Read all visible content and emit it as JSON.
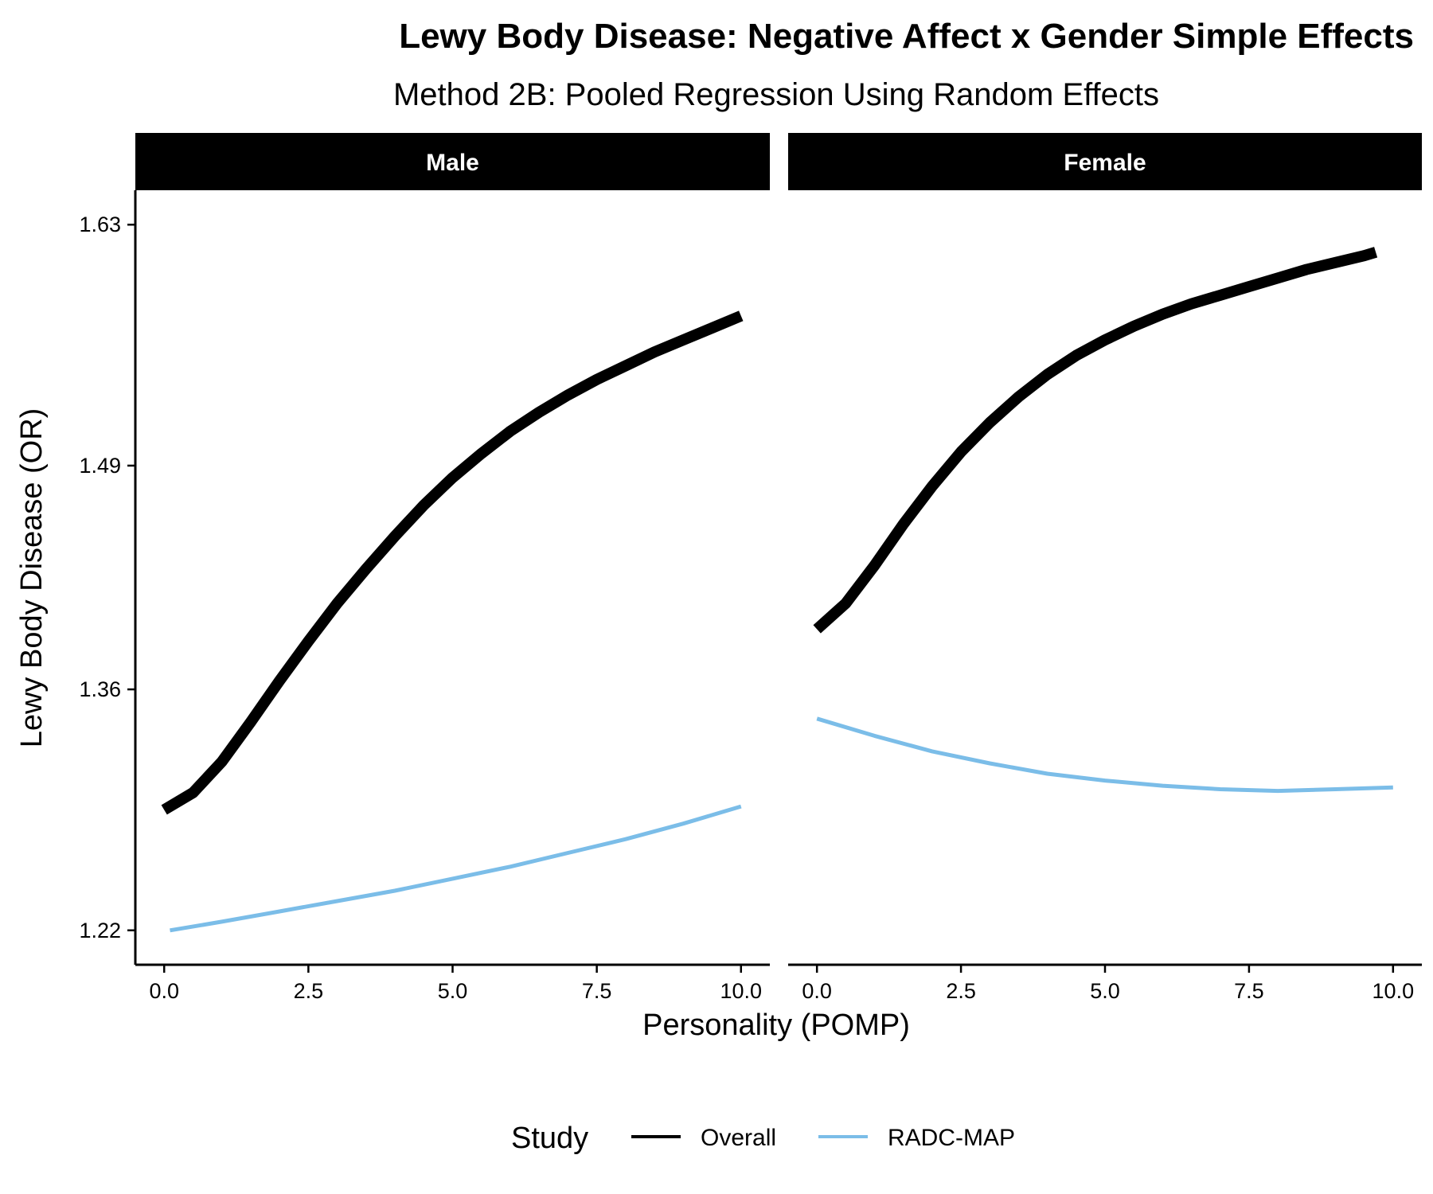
{
  "chart_data": {
    "type": "line",
    "title": "Lewy Body Disease: Negative Affect x Gender Simple Effects",
    "subtitle": "Method 2B: Pooled Regression Using Random Effects",
    "xlabel": "Personality (POMP)",
    "ylabel": "Lewy Body Disease (OR)",
    "xlim": [
      -0.5,
      10.5
    ],
    "ylim": [
      1.2,
      1.65
    ],
    "xticks": [
      0,
      2.5,
      5,
      7.5,
      10
    ],
    "xtick_labels": [
      "0.0",
      "2.5",
      "5.0",
      "7.5",
      "10.0"
    ],
    "yticks": [
      1.22,
      1.36,
      1.49,
      1.63
    ],
    "ytick_labels": [
      "1.22",
      "1.36",
      "1.49",
      "1.63"
    ],
    "grid": false,
    "legend": {
      "title": "Study",
      "position": "bottom",
      "entries": [
        "Overall",
        "RADC-MAP"
      ]
    },
    "colors": {
      "Overall": "#000000",
      "RADC-MAP": "#7bbde8"
    },
    "panels": [
      {
        "name": "Male",
        "series": [
          {
            "name": "Overall",
            "x": [
              0,
              0.5,
              1,
              1.5,
              2,
              2.5,
              3,
              3.5,
              4,
              4.5,
              5,
              5.5,
              6,
              6.5,
              7,
              7.5,
              8,
              8.5,
              9,
              9.5,
              10
            ],
            "y": [
              1.29,
              1.3,
              1.318,
              1.341,
              1.365,
              1.388,
              1.41,
              1.43,
              1.449,
              1.467,
              1.483,
              1.497,
              1.51,
              1.521,
              1.531,
              1.54,
              1.548,
              1.556,
              1.563,
              1.57,
              1.577
            ]
          },
          {
            "name": "RADC-MAP",
            "x": [
              0.1,
              1,
              2,
              3,
              4,
              5,
              6,
              7,
              8,
              9,
              10
            ],
            "y": [
              1.22,
              1.225,
              1.231,
              1.237,
              1.243,
              1.25,
              1.257,
              1.265,
              1.273,
              1.282,
              1.292
            ]
          }
        ]
      },
      {
        "name": "Female",
        "series": [
          {
            "name": "Overall",
            "x": [
              0,
              0.5,
              1,
              1.5,
              2,
              2.5,
              3,
              3.5,
              4,
              4.5,
              5,
              5.5,
              6,
              6.5,
              7,
              7.5,
              8,
              8.5,
              9,
              9.5,
              9.7
            ],
            "y": [
              1.395,
              1.41,
              1.432,
              1.456,
              1.478,
              1.498,
              1.515,
              1.53,
              1.543,
              1.554,
              1.563,
              1.571,
              1.578,
              1.584,
              1.589,
              1.594,
              1.599,
              1.604,
              1.608,
              1.612,
              1.614
            ]
          },
          {
            "name": "RADC-MAP",
            "x": [
              0,
              1,
              2,
              3,
              4,
              5,
              6,
              7,
              8,
              9,
              10
            ],
            "y": [
              1.343,
              1.333,
              1.324,
              1.317,
              1.311,
              1.307,
              1.304,
              1.302,
              1.301,
              1.302,
              1.303
            ]
          }
        ]
      }
    ]
  }
}
